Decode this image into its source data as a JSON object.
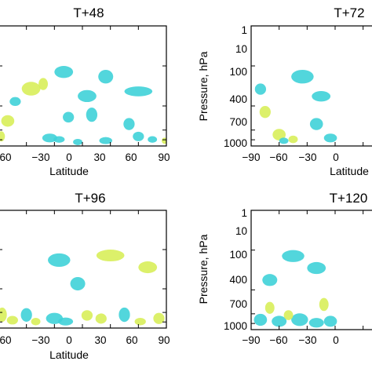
{
  "chart_data": [
    {
      "type": "heatmap",
      "title": "T+48",
      "xlabel": "Latitude",
      "ylabel": "",
      "xticks": [
        "60",
        "−30",
        "0",
        "30",
        "60",
        "90"
      ],
      "yticks": [],
      "xlim": [
        -90,
        90
      ],
      "ylim": [
        1000,
        1
      ],
      "blobs": [
        {
          "lat": -87,
          "p": 600,
          "w": 4,
          "h": 340,
          "c": "yellow"
        },
        {
          "lat": -80,
          "p": 250,
          "w": 7,
          "h": 160,
          "c": "yellow"
        },
        {
          "lat": -55,
          "p": 40,
          "w": 10,
          "h": 30,
          "c": "yellow"
        },
        {
          "lat": -72,
          "p": 80,
          "w": 6,
          "h": 40,
          "c": "cyan"
        },
        {
          "lat": -42,
          "p": 30,
          "w": 5,
          "h": 20,
          "c": "yellow"
        },
        {
          "lat": -20,
          "p": 15,
          "w": 10,
          "h": 10,
          "c": "cyan"
        },
        {
          "lat": 5,
          "p": 60,
          "w": 10,
          "h": 40,
          "c": "cyan"
        },
        {
          "lat": 25,
          "p": 20,
          "w": 8,
          "h": 15,
          "c": "cyan"
        },
        {
          "lat": 60,
          "p": 45,
          "w": 15,
          "h": 25,
          "c": "cyan"
        },
        {
          "lat": -15,
          "p": 200,
          "w": 6,
          "h": 120,
          "c": "cyan"
        },
        {
          "lat": 10,
          "p": 180,
          "w": 6,
          "h": 140,
          "c": "cyan"
        },
        {
          "lat": 50,
          "p": 300,
          "w": 6,
          "h": 200,
          "c": "cyan"
        },
        {
          "lat": -35,
          "p": 650,
          "w": 8,
          "h": 320,
          "c": "cyan"
        },
        {
          "lat": -25,
          "p": 700,
          "w": 6,
          "h": 260,
          "c": "cyan"
        },
        {
          "lat": 25,
          "p": 750,
          "w": 7,
          "h": 300,
          "c": "cyan"
        },
        {
          "lat": 60,
          "p": 600,
          "w": 6,
          "h": 320,
          "c": "cyan"
        },
        {
          "lat": 75,
          "p": 700,
          "w": 5,
          "h": 260,
          "c": "cyan"
        },
        {
          "lat": 88,
          "p": 750,
          "w": 3,
          "h": 240,
          "c": "yellow"
        },
        {
          "lat": -5,
          "p": 800,
          "w": 5,
          "h": 150,
          "c": "cyan"
        }
      ]
    },
    {
      "type": "heatmap",
      "title": "T+72",
      "xlabel": "Latitude",
      "ylabel": "Pressure, hPa",
      "xticks": [
        "−90",
        "−60",
        "−30",
        "0"
      ],
      "yticks": [
        "1",
        "10",
        "100",
        "400",
        "700",
        "1000"
      ],
      "xlim": [
        -90,
        90
      ],
      "ylim": [
        1000,
        1
      ],
      "blobs": [
        {
          "lat": -75,
          "p": 150,
          "w": 6,
          "h": 100,
          "c": "yellow"
        },
        {
          "lat": -60,
          "p": 550,
          "w": 7,
          "h": 350,
          "c": "yellow"
        },
        {
          "lat": -45,
          "p": 700,
          "w": 5,
          "h": 300,
          "c": "yellow"
        },
        {
          "lat": -35,
          "p": 20,
          "w": 12,
          "h": 15,
          "c": "cyan"
        },
        {
          "lat": -15,
          "p": 60,
          "w": 10,
          "h": 35,
          "c": "cyan"
        },
        {
          "lat": -80,
          "p": 40,
          "w": 6,
          "h": 25,
          "c": "cyan"
        },
        {
          "lat": -20,
          "p": 300,
          "w": 7,
          "h": 200,
          "c": "cyan"
        },
        {
          "lat": -5,
          "p": 650,
          "w": 7,
          "h": 320,
          "c": "cyan"
        },
        {
          "lat": -55,
          "p": 750,
          "w": 5,
          "h": 200,
          "c": "cyan"
        }
      ]
    },
    {
      "type": "heatmap",
      "title": "T+96",
      "xlabel": "Latitude",
      "ylabel": "",
      "xticks": [
        "60",
        "−30",
        "0",
        "30",
        "60",
        "90"
      ],
      "yticks": [],
      "xlim": [
        -90,
        90
      ],
      "ylim": [
        1000,
        1
      ],
      "blobs": [
        {
          "lat": -86,
          "p": 500,
          "w": 5,
          "h": 400,
          "c": "yellow"
        },
        {
          "lat": -75,
          "p": 650,
          "w": 6,
          "h": 320,
          "c": "yellow"
        },
        {
          "lat": -60,
          "p": 500,
          "w": 6,
          "h": 380,
          "c": "cyan"
        },
        {
          "lat": -50,
          "p": 700,
          "w": 5,
          "h": 300,
          "c": "yellow"
        },
        {
          "lat": -30,
          "p": 600,
          "w": 9,
          "h": 380,
          "c": "cyan"
        },
        {
          "lat": -18,
          "p": 700,
          "w": 8,
          "h": 320,
          "c": "cyan"
        },
        {
          "lat": 5,
          "p": 500,
          "w": 6,
          "h": 300,
          "c": "yellow"
        },
        {
          "lat": 20,
          "p": 600,
          "w": 6,
          "h": 350,
          "c": "yellow"
        },
        {
          "lat": 45,
          "p": 500,
          "w": 6,
          "h": 400,
          "c": "cyan"
        },
        {
          "lat": 62,
          "p": 700,
          "w": 6,
          "h": 300,
          "c": "yellow"
        },
        {
          "lat": 82,
          "p": 600,
          "w": 6,
          "h": 380,
          "c": "yellow"
        },
        {
          "lat": -25,
          "p": 20,
          "w": 12,
          "h": 15,
          "c": "cyan"
        },
        {
          "lat": 30,
          "p": 15,
          "w": 15,
          "h": 10,
          "c": "yellow"
        },
        {
          "lat": 70,
          "p": 30,
          "w": 10,
          "h": 20,
          "c": "yellow"
        },
        {
          "lat": -5,
          "p": 80,
          "w": 8,
          "h": 60,
          "c": "cyan"
        }
      ]
    },
    {
      "type": "heatmap",
      "title": "T+120",
      "xlabel": "",
      "ylabel": "Pressure, hPa",
      "xticks": [
        "−90",
        "−60",
        "−30",
        "0"
      ],
      "yticks": [
        "1",
        "10",
        "100",
        "400",
        "700",
        "1000"
      ],
      "xlim": [
        -90,
        90
      ],
      "ylim": [
        1000,
        1
      ],
      "blobs": [
        {
          "lat": -80,
          "p": 600,
          "w": 7,
          "h": 400,
          "c": "cyan"
        },
        {
          "lat": -60,
          "p": 650,
          "w": 8,
          "h": 400,
          "c": "cyan"
        },
        {
          "lat": -38,
          "p": 600,
          "w": 9,
          "h": 420,
          "c": "cyan"
        },
        {
          "lat": -20,
          "p": 700,
          "w": 8,
          "h": 380,
          "c": "cyan"
        },
        {
          "lat": -5,
          "p": 650,
          "w": 7,
          "h": 400,
          "c": "cyan"
        },
        {
          "lat": -70,
          "p": 300,
          "w": 5,
          "h": 200,
          "c": "yellow"
        },
        {
          "lat": -50,
          "p": 450,
          "w": 5,
          "h": 250,
          "c": "yellow"
        },
        {
          "lat": -12,
          "p": 250,
          "w": 5,
          "h": 180,
          "c": "yellow"
        },
        {
          "lat": -45,
          "p": 15,
          "w": 12,
          "h": 10,
          "c": "cyan"
        },
        {
          "lat": -20,
          "p": 30,
          "w": 10,
          "h": 20,
          "c": "cyan"
        },
        {
          "lat": -70,
          "p": 60,
          "w": 8,
          "h": 40,
          "c": "cyan"
        }
      ]
    }
  ],
  "colors": {
    "yellow": "#d8ee5a",
    "cyan": "#3fd2d8",
    "blue": "#2aa7e0",
    "frame": "#000000",
    "background": "#ffffff"
  }
}
